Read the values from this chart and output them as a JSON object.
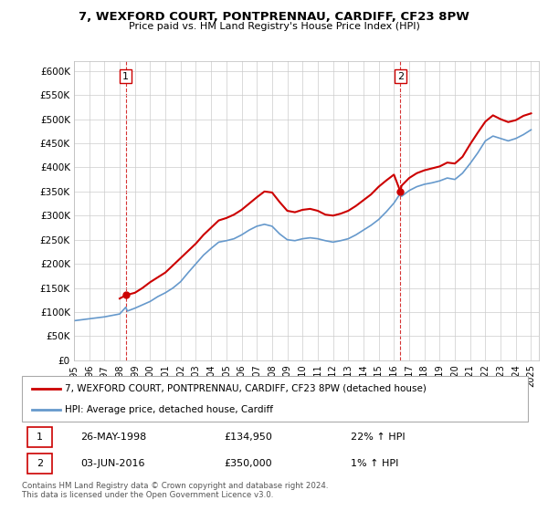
{
  "title": "7, WEXFORD COURT, PONTPRENNAU, CARDIFF, CF23 8PW",
  "subtitle": "Price paid vs. HM Land Registry's House Price Index (HPI)",
  "legend_line1": "7, WEXFORD COURT, PONTPRENNAU, CARDIFF, CF23 8PW (detached house)",
  "legend_line2": "HPI: Average price, detached house, Cardiff",
  "sale1_date": "26-MAY-1998",
  "sale1_price": "£134,950",
  "sale1_hpi": "22% ↑ HPI",
  "sale2_date": "03-JUN-2016",
  "sale2_price": "£350,000",
  "sale2_hpi": "1% ↑ HPI",
  "footer": "Contains HM Land Registry data © Crown copyright and database right 2024.\nThis data is licensed under the Open Government Licence v3.0.",
  "hpi_color": "#6699cc",
  "price_color": "#cc0000",
  "dashed_line_color": "#cc0000",
  "ylim_min": 0,
  "ylim_max": 620000,
  "yticks": [
    0,
    50000,
    100000,
    150000,
    200000,
    250000,
    300000,
    350000,
    400000,
    450000,
    500000,
    550000,
    600000
  ],
  "ytick_labels": [
    "£0",
    "£50K",
    "£100K",
    "£150K",
    "£200K",
    "£250K",
    "£300K",
    "£350K",
    "£400K",
    "£450K",
    "£500K",
    "£550K",
    "£600K"
  ],
  "sale1_x": 1998.4,
  "sale1_y": 134950,
  "sale2_x": 2016.42,
  "sale2_y": 350000,
  "xmin": 1995,
  "xmax": 2025.5
}
